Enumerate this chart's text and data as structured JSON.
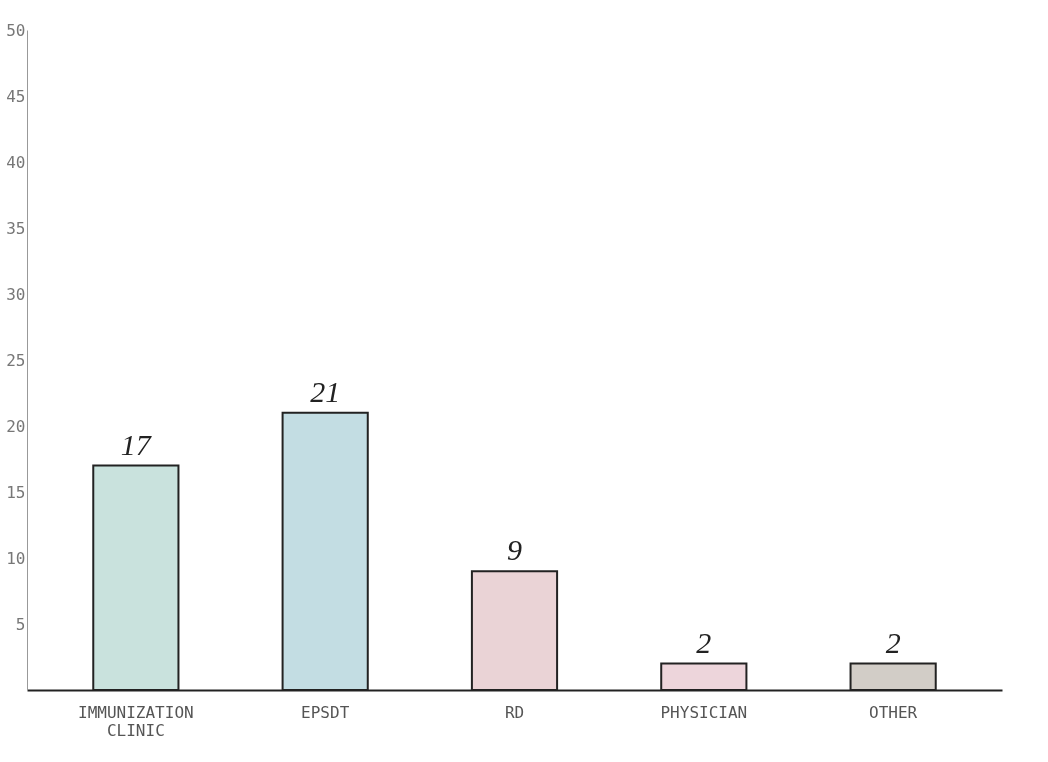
{
  "chart_data": {
    "type": "bar",
    "categories": [
      "IMMUNIZATION CLINIC",
      "EPSDT",
      "RD",
      "PHYSICIAN",
      "OTHER"
    ],
    "values": [
      17,
      21,
      9,
      2,
      2
    ],
    "colors": [
      "#c9e2dd",
      "#c3dde3",
      "#ead3d6",
      "#edd5db",
      "#d2cdc7"
    ],
    "data_labels": true,
    "ylim": [
      0,
      50
    ],
    "yticks": [
      5,
      10,
      15,
      20,
      25,
      30,
      35,
      40,
      45,
      50
    ],
    "grid": false,
    "legend": false
  }
}
